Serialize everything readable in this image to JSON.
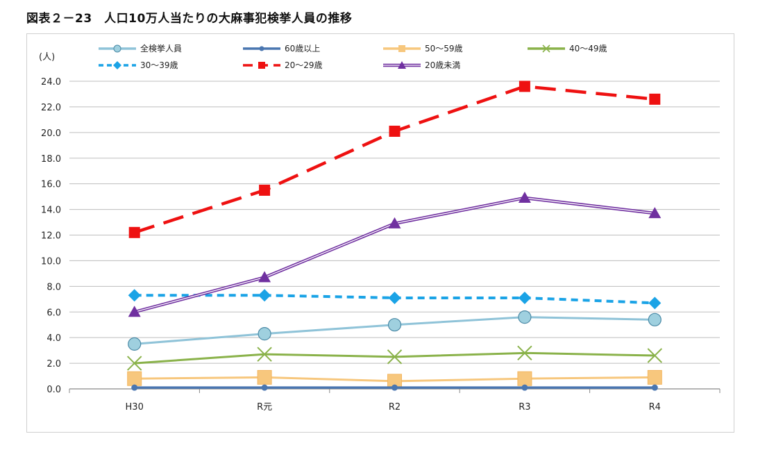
{
  "page": {
    "title": "図表２－23　人口10万人当たりの大麻事犯検挙人員の推移"
  },
  "chart_data": {
    "type": "line",
    "ylabel": "(人)",
    "categories": [
      "H30",
      "R元",
      "R2",
      "R3",
      "R4"
    ],
    "ylim": [
      0,
      24
    ],
    "yticks": [
      "0.0",
      "2.0",
      "4.0",
      "6.0",
      "8.0",
      "10.0",
      "12.0",
      "14.0",
      "16.0",
      "18.0",
      "20.0",
      "22.0",
      "24.0"
    ],
    "grid": "horizontal",
    "legend_position": "top",
    "series": [
      {
        "name": "全検挙人員",
        "values": [
          3.5,
          4.3,
          5.0,
          5.6,
          5.4
        ],
        "color": "#8fc3d8",
        "marker": "circle",
        "dash": "solid",
        "double": false
      },
      {
        "name": "60歳以上",
        "values": [
          0.1,
          0.1,
          0.1,
          0.1,
          0.1
        ],
        "color": "#4a76b0",
        "marker": "circle-small",
        "dash": "solid",
        "double": false
      },
      {
        "name": "50～59歳",
        "values": [
          0.8,
          0.9,
          0.6,
          0.8,
          0.9
        ],
        "color": "#f7c77d",
        "marker": "square",
        "dash": "solid",
        "double": false
      },
      {
        "name": "40～49歳",
        "values": [
          2.0,
          2.7,
          2.5,
          2.8,
          2.6
        ],
        "color": "#8ab24a",
        "marker": "x",
        "dash": "solid",
        "double": false
      },
      {
        "name": "30～39歳",
        "values": [
          7.3,
          7.3,
          7.1,
          7.1,
          6.7
        ],
        "color": "#1aa3e6",
        "marker": "diamond",
        "dash": "dash",
        "double": false
      },
      {
        "name": "20～29歳",
        "values": [
          12.2,
          15.5,
          20.1,
          23.6,
          22.6
        ],
        "color": "#ee1111",
        "marker": "square-red",
        "dash": "longdash",
        "double": false
      },
      {
        "name": "20歳未満",
        "values": [
          6.0,
          8.7,
          12.9,
          14.9,
          13.7
        ],
        "color": "#7030a0",
        "marker": "triangle",
        "dash": "solid",
        "double": true
      }
    ]
  }
}
